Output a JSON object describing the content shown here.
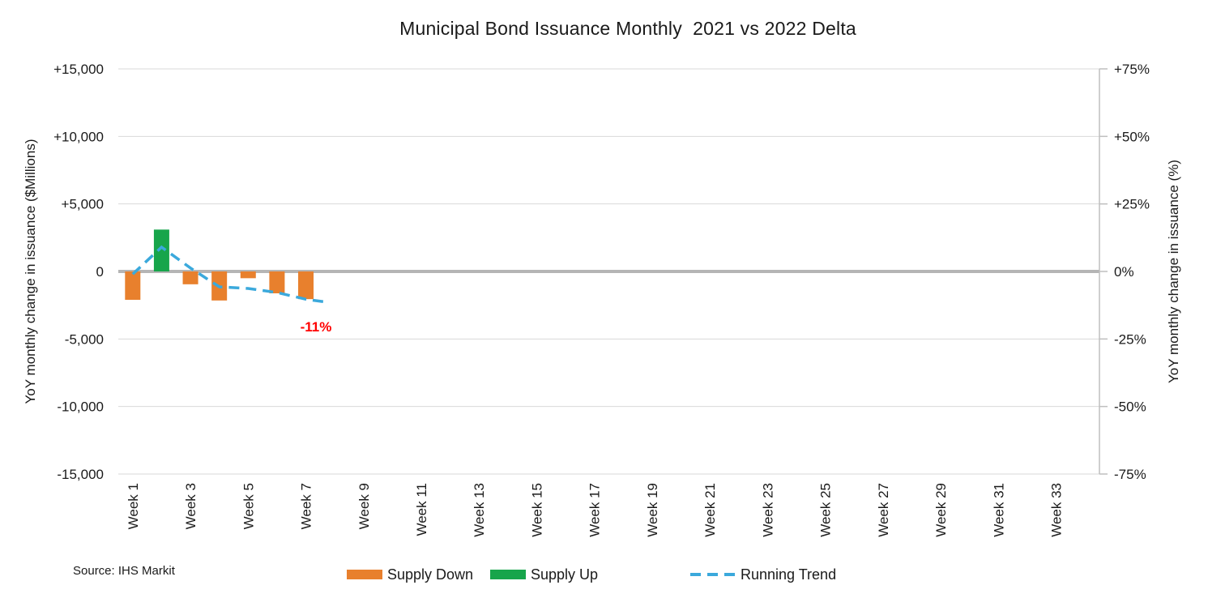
{
  "title": "Municipal Bond Issuance Monthly  2021 vs 2022 Delta",
  "source": "Source: IHS Markit",
  "legend": {
    "items": [
      {
        "label": "Supply Down",
        "swatch": "bar",
        "color": "#E8802D"
      },
      {
        "label": "Supply Up",
        "swatch": "bar",
        "color": "#17A54B"
      },
      {
        "label": "Running Trend",
        "swatch": "dashed-line",
        "color": "#3BA9DC"
      }
    ]
  },
  "colors": {
    "supply_down": "#E8802D",
    "supply_up": "#17A54B",
    "running_trend": "#3BA9DC",
    "annotation_red": "#FF0000",
    "gridline": "#D9D9D9",
    "zero_line": "#B5B5B5",
    "axis_line": "#BFBFBF",
    "text": "#1A1A1A",
    "background": "#FFFFFF"
  },
  "chart_data": {
    "type": "bar",
    "subtype": "bar+dashed-line combo, dual axis",
    "title": "Municipal Bond Issuance Monthly  2021 vs 2022 Delta",
    "x_axis": {
      "num_categories": 34,
      "tick_week_numbers": [
        1,
        3,
        5,
        7,
        9,
        11,
        13,
        15,
        17,
        19,
        21,
        23,
        25,
        27,
        29,
        31,
        33
      ],
      "tick_labels": [
        "Week 1",
        "Week 3",
        "Week 5",
        "Week 7",
        "Week 9",
        "Week 11",
        "Week 13",
        "Week 15",
        "Week 17",
        "Week 19",
        "Week 21",
        "Week 23",
        "Week 25",
        "Week 27",
        "Week 29",
        "Week 31",
        "Week 33"
      ]
    },
    "left_axis": {
      "label": "YoY monthly change in issuance ($Millions)",
      "min": -15000,
      "max": 15000,
      "step": 5000,
      "tick_labels": [
        "+15,000",
        "+10,000",
        "+5,000",
        "0",
        "-5,000",
        "-10,000",
        "-15,000"
      ]
    },
    "right_axis": {
      "label": "YoY monthly change in issuance (%)",
      "min": -75,
      "max": 75,
      "step": 25,
      "tick_labels": [
        "+75%",
        "+50%",
        "+25%",
        "0%",
        "-25%",
        "-50%",
        "-75%"
      ]
    },
    "grid": true,
    "legend_position": "bottom",
    "series": [
      {
        "name": "Supply Down / Supply Up",
        "type": "bar",
        "axis": "left",
        "weeks": [
          1,
          2,
          3,
          4,
          5,
          6,
          7
        ],
        "values": [
          -2100,
          3100,
          -950,
          -2150,
          -500,
          -1620,
          -2050
        ],
        "color_rule": "green if positive (Supply Up), orange if negative (Supply Down)"
      },
      {
        "name": "Running Trend",
        "type": "line",
        "style": "dashed",
        "axis": "right",
        "points": [
          [
            1,
            -1
          ],
          [
            2,
            9
          ],
          [
            3,
            1.3
          ],
          [
            4,
            -5.7
          ],
          [
            5,
            -6.3
          ],
          [
            6,
            -7.8
          ],
          [
            7,
            -10.3
          ],
          [
            7.6,
            -11.2
          ]
        ]
      }
    ],
    "annotations": [
      {
        "text": "-11%",
        "color": "#FF0000",
        "x_week": 7.35,
        "y_pct": -20.7
      }
    ]
  }
}
